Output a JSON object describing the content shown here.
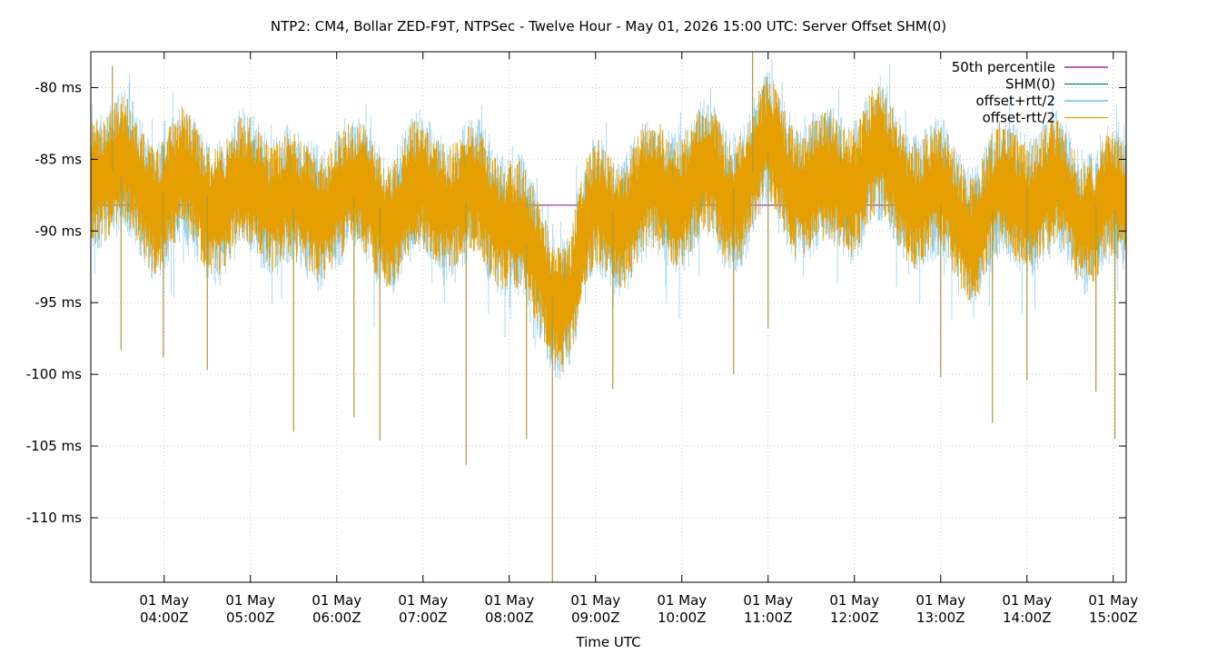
{
  "chart_data": {
    "type": "line",
    "title": "NTP2: CM4, Bollar ZED-F9T, NTPSec - Twelve Hour - May 01, 2026 15:00 UTC: Server Offset SHM(0)",
    "xlabel": "Time UTC",
    "ylabel": "",
    "grid": true,
    "legend_position": "top-right",
    "x_range_hours_utc": [
      3.15,
      15.15
    ],
    "y_range_ms": [
      -114.5,
      -77.5
    ],
    "y_ticks": [
      {
        "value": -80,
        "label": "-80 ms"
      },
      {
        "value": -85,
        "label": "-85 ms"
      },
      {
        "value": -90,
        "label": "-90 ms"
      },
      {
        "value": -95,
        "label": "-95 ms"
      },
      {
        "value": -100,
        "label": "-100 ms"
      },
      {
        "value": -105,
        "label": "-105 ms"
      },
      {
        "value": -110,
        "label": "-110 ms"
      }
    ],
    "x_ticks": [
      {
        "hour": 4,
        "date": "01 May",
        "time": "04:00Z"
      },
      {
        "hour": 5,
        "date": "01 May",
        "time": "05:00Z"
      },
      {
        "hour": 6,
        "date": "01 May",
        "time": "06:00Z"
      },
      {
        "hour": 7,
        "date": "01 May",
        "time": "07:00Z"
      },
      {
        "hour": 8,
        "date": "01 May",
        "time": "08:00Z"
      },
      {
        "hour": 9,
        "date": "01 May",
        "time": "09:00Z"
      },
      {
        "hour": 10,
        "date": "01 May",
        "time": "10:00Z"
      },
      {
        "hour": 11,
        "date": "01 May",
        "time": "11:00Z"
      },
      {
        "hour": 12,
        "date": "01 May",
        "time": "12:00Z"
      },
      {
        "hour": 13,
        "date": "01 May",
        "time": "13:00Z"
      },
      {
        "hour": 14,
        "date": "01 May",
        "time": "14:00Z"
      },
      {
        "hour": 15,
        "date": "01 May",
        "time": "15:00Z"
      }
    ],
    "series": [
      {
        "name": "50th percentile",
        "color": "#8b008b",
        "kind": "hline",
        "value_ms": -88.2
      },
      {
        "name": "SHM(0)",
        "color": "#00806f",
        "kind": "line"
      },
      {
        "name": "offset+rtt/2",
        "color": "#56b4e9",
        "kind": "band"
      },
      {
        "name": "offset-rtt/2",
        "color": "#e69f00",
        "kind": "band"
      }
    ],
    "offset_center_ms": {
      "x_hour": [
        3.15,
        3.3,
        3.6,
        3.9,
        4.2,
        4.5,
        4.8,
        5.1,
        5.4,
        5.6,
        5.8,
        6.0,
        6.3,
        6.6,
        6.9,
        7.2,
        7.5,
        7.8,
        8.0,
        8.15,
        8.3,
        8.5,
        8.7,
        8.85,
        9.0,
        9.3,
        9.6,
        9.9,
        10.2,
        10.5,
        10.8,
        11.0,
        11.3,
        11.6,
        11.9,
        12.2,
        12.5,
        12.8,
        13.1,
        13.4,
        13.7,
        14.0,
        14.3,
        14.6,
        14.9,
        15.15
      ],
      "y_ms": [
        -85.0,
        -85.5,
        -86.5,
        -87.5,
        -87.0,
        -87.5,
        -88.0,
        -87.0,
        -87.5,
        -89.5,
        -88.5,
        -87.0,
        -88.0,
        -88.5,
        -88.0,
        -87.0,
        -88.0,
        -88.5,
        -88.5,
        -90.0,
        -93.0,
        -94.5,
        -94.0,
        -91.0,
        -89.0,
        -88.5,
        -88.0,
        -87.0,
        -86.5,
        -87.5,
        -86.0,
        -84.5,
        -86.0,
        -87.5,
        -86.5,
        -85.0,
        -86.5,
        -87.5,
        -88.5,
        -89.5,
        -88.0,
        -87.0,
        -87.5,
        -88.5,
        -88.0,
        -89.0
      ]
    },
    "offset_spread_ms": 5.0,
    "spikes_ms": [
      {
        "x_hour": 3.5,
        "y": -98.3
      },
      {
        "x_hour": 3.99,
        "y": -98.8
      },
      {
        "x_hour": 4.5,
        "y": -99.7
      },
      {
        "x_hour": 5.5,
        "y": -104.0
      },
      {
        "x_hour": 6.2,
        "y": -103.0
      },
      {
        "x_hour": 6.5,
        "y": -104.6
      },
      {
        "x_hour": 7.5,
        "y": -106.3
      },
      {
        "x_hour": 8.2,
        "y": -104.5
      },
      {
        "x_hour": 8.5,
        "y": -114.5
      },
      {
        "x_hour": 9.2,
        "y": -101.0
      },
      {
        "x_hour": 10.6,
        "y": -100.0
      },
      {
        "x_hour": 11.0,
        "y": -96.8
      },
      {
        "x_hour": 13.0,
        "y": -100.2
      },
      {
        "x_hour": 13.6,
        "y": -103.4
      },
      {
        "x_hour": 14.0,
        "y": -100.4
      },
      {
        "x_hour": 14.8,
        "y": -101.2
      },
      {
        "x_hour": 15.02,
        "y": -104.5
      },
      {
        "x_hour": 10.82,
        "y": -77.5
      },
      {
        "x_hour": 3.4,
        "y": -78.5
      }
    ]
  }
}
